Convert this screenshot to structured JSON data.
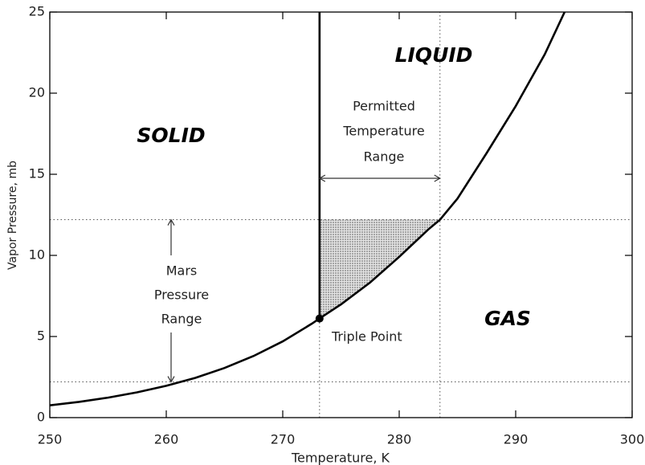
{
  "chart_data": {
    "type": "line",
    "x_label": "Temperature, K",
    "y_label": "Vapor Pressure, mb",
    "xlim": [
      250,
      300
    ],
    "ylim": [
      0,
      25
    ],
    "xticks": [
      250,
      260,
      270,
      280,
      290,
      300
    ],
    "yticks": [
      0,
      5,
      10,
      15,
      20,
      25
    ],
    "series": [
      {
        "color": "#000000",
        "x": [
          250,
          252.5,
          255,
          257.5,
          260,
          262.5,
          265,
          267.5,
          270,
          272.5,
          273.16,
          275,
          277.5,
          280,
          282.5,
          283.5,
          285,
          287.5,
          290,
          292.5,
          294.2
        ],
        "values": [
          0.76,
          0.97,
          1.23,
          1.56,
          1.96,
          2.45,
          3.06,
          3.8,
          4.7,
          5.79,
          6.11,
          6.98,
          8.33,
          9.91,
          11.6,
          12.2,
          13.5,
          16.3,
          19.2,
          22.4,
          25
        ]
      },
      {
        "color": "#000000",
        "x": [
          273.16,
          273.16
        ],
        "values": [
          6.11,
          25
        ]
      }
    ],
    "regions": [
      "SOLID",
      "LIQUID",
      "GAS"
    ],
    "triple_point": {
      "label": "Triple Point",
      "x": 273.16,
      "y": 6.11
    },
    "mars_pressure_range": {
      "label": [
        "Mars",
        "Pressure",
        "Range"
      ],
      "range": [
        2.2,
        12.2
      ]
    },
    "permitted_temperature_range": {
      "label": [
        "Permitted",
        "Temperature",
        "Range"
      ],
      "range": [
        273.16,
        283.5
      ]
    }
  }
}
